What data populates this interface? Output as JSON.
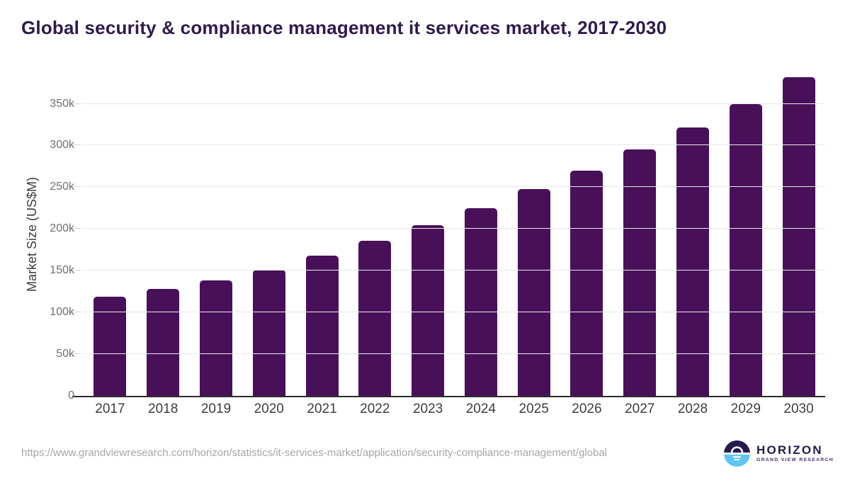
{
  "page": {
    "title": "Global security & compliance management it services market, 2017-2030"
  },
  "chart_data": {
    "type": "bar",
    "title": "Global security & compliance management it services market, 2017-2030",
    "categories": [
      "2017",
      "2018",
      "2019",
      "2020",
      "2021",
      "2022",
      "2023",
      "2024",
      "2025",
      "2026",
      "2027",
      "2028",
      "2029",
      "2030"
    ],
    "values": [
      118500,
      128000,
      138500,
      151000,
      168000,
      185500,
      204500,
      225000,
      247500,
      270000,
      295500,
      322000,
      350000,
      381500
    ],
    "xlabel": "",
    "ylabel": "Market Size (US$M)",
    "ylim": [
      0,
      392000
    ],
    "yticks": [
      0,
      50000,
      100000,
      150000,
      200000,
      250000,
      300000,
      350000
    ],
    "ytick_labels": [
      "0",
      "50k",
      "100k",
      "150k",
      "200k",
      "250k",
      "300k",
      "350k"
    ],
    "grid": "horizontal",
    "legend": "none",
    "bar_color": "#49105A"
  },
  "footer": {
    "source_url": "https://www.grandviewresearch.com/horizon/statistics/it-services-market/application/security-compliance-management/global",
    "brand": {
      "name": "HORIZON",
      "tagline": "GRAND VIEW RESEARCH"
    }
  },
  "colors": {
    "bar": "#49105A",
    "title": "#2E1A4D",
    "axis_label": "#3C3C3C",
    "y_tick_label": "#6F6F6F",
    "x_tick_label": "#3D3D3D",
    "gridline": "#E8E8E8",
    "axis_line": "#2B2B2B",
    "url_text": "#A6A6A6",
    "logo_navy": "#261A4E",
    "logo_blue": "#5EC6F0"
  }
}
